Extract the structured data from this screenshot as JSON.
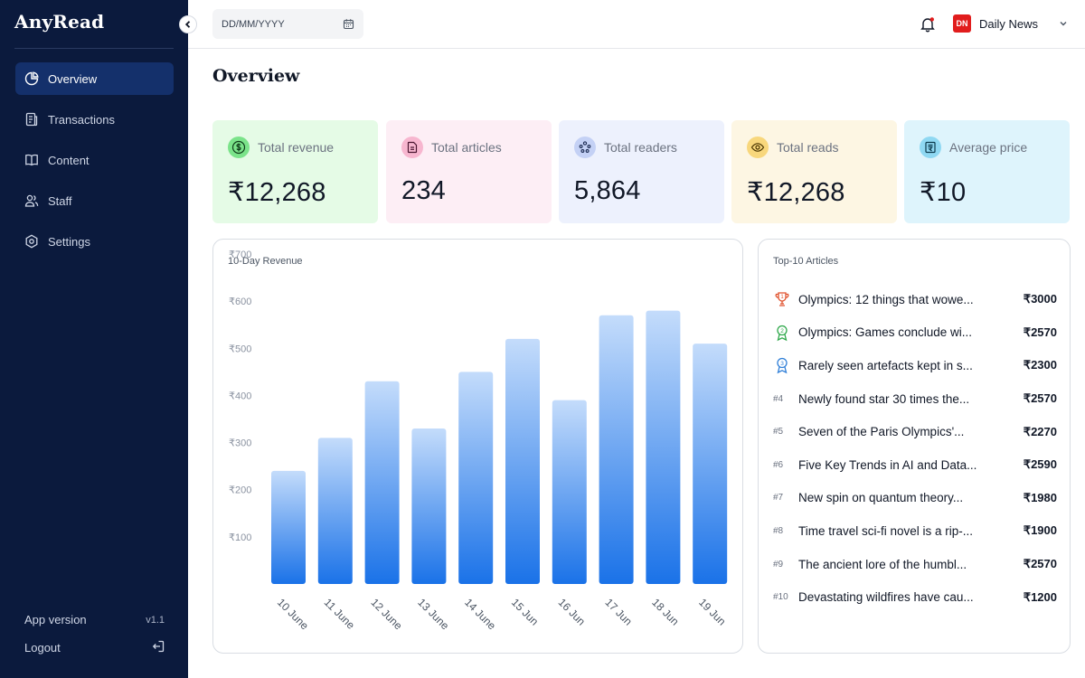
{
  "app": {
    "name": "AnyRead"
  },
  "sidebar": {
    "items": [
      {
        "label": "Overview",
        "icon": "pie-chart-icon",
        "active": true
      },
      {
        "label": "Transactions",
        "icon": "receipt-icon",
        "active": false
      },
      {
        "label": "Content",
        "icon": "book-icon",
        "active": false
      },
      {
        "label": "Staff",
        "icon": "users-icon",
        "active": false
      },
      {
        "label": "Settings",
        "icon": "gear-icon",
        "active": false
      }
    ],
    "app_version_label": "App version",
    "app_version": "v1.1",
    "logout_label": "Logout"
  },
  "header": {
    "date_placeholder": "DD/MM/YYYY",
    "publisher_badge": "DN",
    "publisher_name": "Daily News"
  },
  "main": {
    "title": "Overview",
    "stats": [
      {
        "label": "Total revenue",
        "value": "₹12,268",
        "icon": "dollar-coin-icon",
        "bg": "#e5fbe6",
        "icon_bg": "#7be38a"
      },
      {
        "label": "Total articles",
        "value": "234",
        "icon": "document-icon",
        "bg": "#fdeef5",
        "icon_bg": "#f7b6cf"
      },
      {
        "label": "Total readers",
        "value": "5,864",
        "icon": "readers-icon",
        "bg": "#edf1fd",
        "icon_bg": "#c4d1f5"
      },
      {
        "label": "Total reads",
        "value": "₹12,268",
        "icon": "eye-icon",
        "bg": "#fdf6e3",
        "icon_bg": "#f8d77c"
      },
      {
        "label": "Average price",
        "value": "₹10",
        "icon": "price-tag-icon",
        "bg": "#def4fc",
        "icon_bg": "#8fd8f2"
      }
    ],
    "revenue_panel_title": "10-Day Revenue",
    "top_articles_title": "Top-10 Articles",
    "top_articles": [
      {
        "rank": "1",
        "title": "Olympics: 12 things that wowe...",
        "price": "₹3000",
        "medal_color": "#e0522d"
      },
      {
        "rank": "2",
        "title": "Olympics:  Games conclude wi...",
        "price": "₹2570",
        "medal_color": "#2ea84a"
      },
      {
        "rank": "3",
        "title": "Rarely seen  artefacts kept in s...",
        "price": "₹2300",
        "medal_color": "#2f7fd8"
      },
      {
        "rank": "#4",
        "title": "Newly found star 30 times the...",
        "price": "₹2570"
      },
      {
        "rank": "#5",
        "title": "Seven of the Paris Olympics'...",
        "price": "₹2270"
      },
      {
        "rank": "#6",
        "title": "Five Key Trends in AI and Data...",
        "price": "₹2590"
      },
      {
        "rank": "#7",
        "title": "New spin on quantum theory...",
        "price": "₹1980"
      },
      {
        "rank": "#8",
        "title": "Time travel sci-fi novel is a rip-...",
        "price": "₹1900"
      },
      {
        "rank": "#9",
        "title": "The ancient lore of the humbl...",
        "price": "₹2570"
      },
      {
        "rank": "#10",
        "title": "Devastating wildfires have cau...",
        "price": "₹1200"
      }
    ]
  },
  "chart_data": {
    "type": "bar",
    "title": "10-Day Revenue",
    "categories": [
      "10 June",
      "11 June",
      "12 June",
      "13 June",
      "14 June",
      "15 Jun",
      "16 Jun",
      "17 Jun",
      "18 Jun",
      "19 Jun"
    ],
    "values": [
      240,
      310,
      430,
      330,
      450,
      520,
      390,
      570,
      580,
      510
    ],
    "y_ticks": [
      "₹700",
      "₹600",
      "₹500",
      "₹400",
      "₹300",
      "₹200",
      "₹100"
    ],
    "y_tick_values": [
      700,
      600,
      500,
      400,
      300,
      200,
      100
    ],
    "xlabel": "",
    "ylabel": "",
    "grid": false,
    "bar_color_top": "#c4dcfb",
    "bar_color_bottom": "#1a72e8"
  }
}
